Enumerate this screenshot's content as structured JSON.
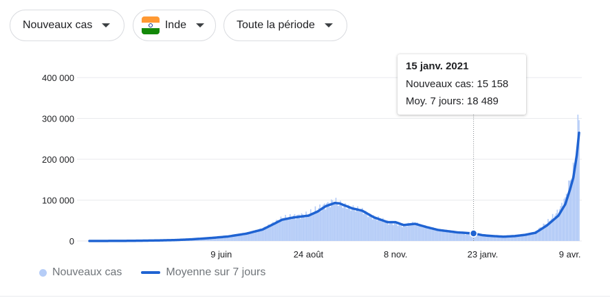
{
  "controls": {
    "metric_label": "Nouveaux cas",
    "country_label": "Inde",
    "period_label": "Toute la période"
  },
  "colors": {
    "bars": "#b6cdf7",
    "average_line": "#1f63d2",
    "grid": "#e8eaed",
    "flag_saffron": "#ff9933",
    "flag_white": "#ffffff",
    "flag_green": "#138808"
  },
  "icons": {
    "dropdown": "caret-down-icon",
    "country": "india-flag-icon"
  },
  "tooltip": {
    "date": "15 janv. 2021",
    "new_cases_line": "Nouveaux cas: 15 158",
    "avg_line": "Moy. 7 jours: 18 489"
  },
  "legend": {
    "bars_label": "Nouveaux cas",
    "line_label": "Moyenne sur 7 jours"
  },
  "chart_data": {
    "type": "bar",
    "title": "",
    "xlabel": "",
    "ylabel": "",
    "ylim": [
      0,
      400000
    ],
    "y_ticks": [
      0,
      100000,
      200000,
      300000,
      400000
    ],
    "y_tick_labels": [
      "0",
      "100 000",
      "200 000",
      "300 000",
      "400 000"
    ],
    "x_range": [
      "2020-02-15",
      "2021-04-17"
    ],
    "x_ticks": [
      {
        "date": "2020-06-09",
        "label": "9 juin"
      },
      {
        "date": "2020-08-24",
        "label": "24 août"
      },
      {
        "date": "2020-11-08",
        "label": "8 nov."
      },
      {
        "date": "2021-01-23",
        "label": "23 janv."
      },
      {
        "date": "2021-04-09",
        "label": "9 avr."
      }
    ],
    "grid": true,
    "highlight": {
      "date": "2021-01-15",
      "new_cases": 15158,
      "avg_7d": 18489
    },
    "series": [
      {
        "name": "Nouveaux cas",
        "kind": "bar",
        "points": [
          [
            "2020-02-15",
            0
          ],
          [
            "2020-03-01",
            100
          ],
          [
            "2020-03-15",
            300
          ],
          [
            "2020-04-01",
            1000
          ],
          [
            "2020-04-15",
            1500
          ],
          [
            "2020-05-01",
            2400
          ],
          [
            "2020-05-15",
            4500
          ],
          [
            "2020-06-01",
            8000
          ],
          [
            "2020-06-09",
            10000
          ],
          [
            "2020-06-15",
            12000
          ],
          [
            "2020-07-01",
            19000
          ],
          [
            "2020-07-15",
            30000
          ],
          [
            "2020-07-25",
            45000
          ],
          [
            "2020-08-01",
            55000
          ],
          [
            "2020-08-10",
            60000
          ],
          [
            "2020-08-24",
            65000
          ],
          [
            "2020-09-01",
            78000
          ],
          [
            "2020-09-08",
            88000
          ],
          [
            "2020-09-16",
            98000
          ],
          [
            "2020-09-20",
            90000
          ],
          [
            "2020-10-01",
            80000
          ],
          [
            "2020-10-10",
            75000
          ],
          [
            "2020-10-20",
            58000
          ],
          [
            "2020-11-01",
            45000
          ],
          [
            "2020-11-08",
            45000
          ],
          [
            "2020-11-15",
            37000
          ],
          [
            "2020-11-25",
            43000
          ],
          [
            "2020-12-05",
            35000
          ],
          [
            "2020-12-15",
            28000
          ],
          [
            "2021-01-01",
            20000
          ],
          [
            "2021-01-15",
            15158
          ],
          [
            "2021-01-23",
            13000
          ],
          [
            "2021-02-01",
            11000
          ],
          [
            "2021-02-10",
            10000
          ],
          [
            "2021-02-20",
            13000
          ],
          [
            "2021-03-01",
            16000
          ],
          [
            "2021-03-10",
            23000
          ],
          [
            "2021-03-20",
            45000
          ],
          [
            "2021-03-30",
            72000
          ],
          [
            "2021-04-05",
            103000
          ],
          [
            "2021-04-09",
            145000
          ],
          [
            "2021-04-12",
            170000
          ],
          [
            "2021-04-15",
            230000
          ],
          [
            "2021-04-17",
            315000
          ]
        ]
      },
      {
        "name": "Moyenne sur 7 jours",
        "kind": "line",
        "points": [
          [
            "2020-02-15",
            0
          ],
          [
            "2020-03-01",
            100
          ],
          [
            "2020-03-15",
            200
          ],
          [
            "2020-04-01",
            700
          ],
          [
            "2020-04-15",
            1300
          ],
          [
            "2020-05-01",
            2300
          ],
          [
            "2020-05-15",
            4200
          ],
          [
            "2020-06-01",
            7500
          ],
          [
            "2020-06-09",
            9500
          ],
          [
            "2020-06-15",
            11000
          ],
          [
            "2020-07-01",
            18000
          ],
          [
            "2020-07-15",
            28000
          ],
          [
            "2020-07-25",
            42000
          ],
          [
            "2020-08-01",
            52000
          ],
          [
            "2020-08-10",
            57000
          ],
          [
            "2020-08-24",
            62000
          ],
          [
            "2020-09-01",
            72000
          ],
          [
            "2020-09-08",
            85000
          ],
          [
            "2020-09-16",
            93000
          ],
          [
            "2020-09-20",
            92000
          ],
          [
            "2020-10-01",
            80000
          ],
          [
            "2020-10-10",
            74000
          ],
          [
            "2020-10-20",
            58000
          ],
          [
            "2020-11-01",
            46000
          ],
          [
            "2020-11-08",
            46000
          ],
          [
            "2020-11-15",
            39000
          ],
          [
            "2020-11-25",
            42000
          ],
          [
            "2020-12-05",
            34000
          ],
          [
            "2020-12-15",
            27000
          ],
          [
            "2021-01-01",
            21000
          ],
          [
            "2021-01-15",
            18489
          ],
          [
            "2021-01-23",
            14000
          ],
          [
            "2021-02-01",
            12000
          ],
          [
            "2021-02-10",
            10500
          ],
          [
            "2021-02-20",
            12000
          ],
          [
            "2021-03-01",
            15000
          ],
          [
            "2021-03-10",
            20000
          ],
          [
            "2021-03-20",
            38000
          ],
          [
            "2021-03-30",
            62000
          ],
          [
            "2021-04-05",
            90000
          ],
          [
            "2021-04-09",
            125000
          ],
          [
            "2021-04-12",
            155000
          ],
          [
            "2021-04-15",
            210000
          ],
          [
            "2021-04-17",
            265000
          ]
        ]
      }
    ]
  }
}
